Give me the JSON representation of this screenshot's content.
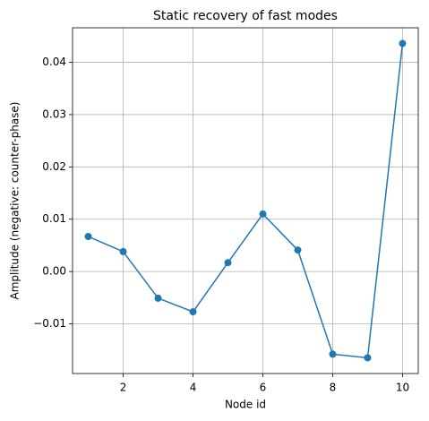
{
  "chart_data": {
    "type": "line",
    "title": "Static recovery of fast modes",
    "x_label": "Node id",
    "y_label": "Amplitude (negative: counter-phase)",
    "x": [
      1,
      2,
      3,
      4,
      5,
      6,
      7,
      8,
      9,
      10
    ],
    "series": [
      {
        "color": "#1f77b4",
        "values": [
          0.0067,
          0.0038,
          -0.0051,
          -0.0077,
          0.0017,
          0.011,
          0.0041,
          -0.0158,
          -0.0165,
          0.0436
        ]
      }
    ],
    "xlim": [
      0.55,
      10.45
    ],
    "xticks": [
      2,
      4,
      6,
      8,
      10
    ],
    "ylim": [
      -0.0195,
      0.0466
    ],
    "yticks": [
      {
        "value": -0.01,
        "label": "−0.01"
      },
      {
        "value": 0,
        "label": "0.00"
      },
      {
        "value": 0.01,
        "label": "0.01"
      },
      {
        "value": 0.02,
        "label": "0.02"
      },
      {
        "value": 0.03,
        "label": "0.03"
      },
      {
        "value": 0.04,
        "label": "0.04"
      }
    ],
    "grid": true
  }
}
